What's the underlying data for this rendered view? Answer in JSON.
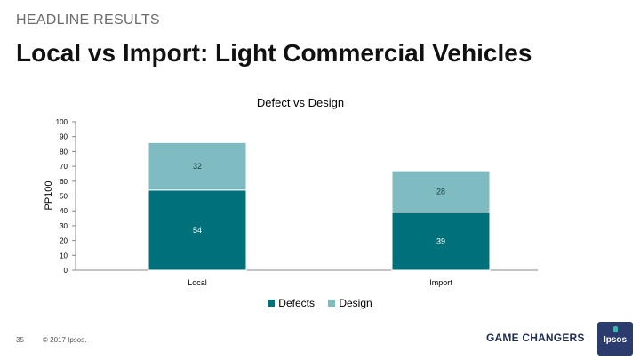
{
  "header": {
    "eyebrow": "HEADLINE RESULTS",
    "title": "Local vs Import: Light Commercial Vehicles"
  },
  "chart_data": {
    "type": "bar",
    "stacked": true,
    "title": "Defect vs Design",
    "xlabel": "",
    "ylabel": "PP100",
    "ylim": [
      0,
      100
    ],
    "yticks": [
      0,
      10,
      20,
      30,
      40,
      50,
      60,
      70,
      80,
      90,
      100
    ],
    "categories": [
      "Local",
      "Import"
    ],
    "series": [
      {
        "name": "Defects",
        "values": [
          54,
          39
        ],
        "color": "#00717a"
      },
      {
        "name": "Design",
        "values": [
          32,
          28
        ],
        "color": "#7fbcc2"
      }
    ],
    "legend_position": "bottom"
  },
  "footer": {
    "page_number": "35",
    "copyright": "© 2017 Ipsos.",
    "brand": "GAME CHANGERS",
    "logo_text": "Ipsos"
  }
}
